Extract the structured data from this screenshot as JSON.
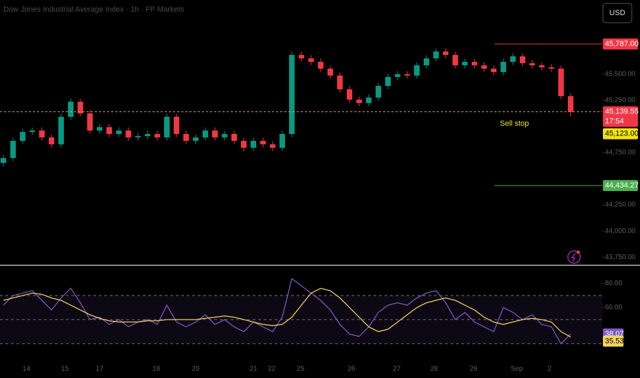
{
  "header": {
    "title": "Dow Jones Industrial Average Index · 1h · FP Markets",
    "currency": "USD"
  },
  "chart_data": [
    {
      "type": "candlestick",
      "open": [
        44650,
        44697,
        44861,
        44946,
        44960,
        44894,
        44828,
        45091,
        45235,
        45124,
        44960,
        44992,
        44927,
        44960,
        44894,
        44907,
        44927,
        44894,
        45091,
        44927,
        44861,
        44894,
        44960,
        44894,
        44927,
        44861,
        44795,
        44861,
        44828,
        44795,
        44927,
        45682,
        45649,
        45616,
        45551,
        45485,
        45354,
        45255,
        45222,
        45275,
        45386,
        45472,
        45498,
        45485,
        45583,
        45649,
        45715,
        45682,
        45583,
        45616,
        45583,
        45551,
        45518,
        45616,
        45669,
        45603,
        45583,
        45564,
        45551,
        45288
      ],
      "high": [
        44727,
        44891,
        44976,
        44990,
        44990,
        44924,
        45121,
        45265,
        45265,
        45154,
        45022,
        45022,
        44990,
        44990,
        44937,
        44957,
        44957,
        45121,
        45121,
        44957,
        44924,
        44990,
        44990,
        44957,
        44957,
        44891,
        44891,
        44891,
        44858,
        44957,
        45712,
        45712,
        45679,
        45646,
        45581,
        45515,
        45384,
        45285,
        45305,
        45416,
        45502,
        45528,
        45528,
        45613,
        45679,
        45745,
        45745,
        45712,
        45646,
        45646,
        45613,
        45581,
        45646,
        45699,
        45699,
        45633,
        45613,
        45594,
        45581,
        45318
      ],
      "low": [
        44620,
        44667,
        44831,
        44916,
        44864,
        44798,
        44798,
        45061,
        45094,
        44930,
        44930,
        44897,
        44897,
        44864,
        44864,
        44877,
        44864,
        44864,
        44897,
        44831,
        44831,
        44864,
        44864,
        44864,
        44831,
        44765,
        44765,
        44798,
        44765,
        44765,
        44897,
        45619,
        45586,
        45521,
        45455,
        45324,
        45225,
        45192,
        45192,
        45245,
        45356,
        45442,
        45455,
        45455,
        45553,
        45619,
        45652,
        45553,
        45553,
        45553,
        45521,
        45488,
        45488,
        45586,
        45573,
        45553,
        45534,
        45521,
        45258,
        45094
      ],
      "close": [
        44697,
        44861,
        44946,
        44960,
        44894,
        44828,
        45091,
        45235,
        45124,
        44960,
        44992,
        44927,
        44960,
        44894,
        44907,
        44927,
        44894,
        45091,
        44927,
        44861,
        44894,
        44960,
        44894,
        44927,
        44861,
        44795,
        44861,
        44828,
        44795,
        44927,
        45682,
        45649,
        45616,
        45551,
        45485,
        45354,
        45255,
        45222,
        45275,
        45386,
        45472,
        45498,
        45485,
        45583,
        45649,
        45715,
        45682,
        45583,
        45616,
        45583,
        45551,
        45518,
        45616,
        45669,
        45603,
        45583,
        45564,
        45551,
        45288,
        45139.55
      ],
      "up_color": "#089981",
      "down_color": "#f23645",
      "ylim": [
        43679,
        46207
      ],
      "yticks": [
        {
          "value": 45500,
          "label": "45,500.00"
        },
        {
          "value": 45250,
          "label": "45,250.00"
        },
        {
          "value": 44750,
          "label": "44,750.00"
        },
        {
          "value": 44250,
          "label": "44,250.00"
        },
        {
          "value": 44000,
          "label": "44,000.00"
        },
        {
          "value": 43750,
          "label": "43,750.00"
        }
      ],
      "xticks": [
        {
          "value": 2.4,
          "label": "14"
        },
        {
          "value": 6.4,
          "label": "15"
        },
        {
          "value": 10,
          "label": "17"
        },
        {
          "value": 15.9,
          "label": "18"
        },
        {
          "value": 20,
          "label": "20"
        },
        {
          "value": 26,
          "label": "21"
        },
        {
          "value": 27.9,
          "label": "22"
        },
        {
          "value": 30.9,
          "label": "25"
        },
        {
          "value": 36.2,
          "label": "26"
        },
        {
          "value": 40.9,
          "label": "27"
        },
        {
          "value": 44.8,
          "label": "28"
        },
        {
          "value": 48.9,
          "label": "29"
        },
        {
          "value": 53.4,
          "label": "Sep"
        },
        {
          "value": 56.8,
          "label": "2"
        }
      ],
      "levels": [
        {
          "value": 45787,
          "label": "45,787.00",
          "color": "#f23645"
        },
        {
          "value": 44434.27,
          "label": "44,434.27",
          "color": "#4caf50"
        }
      ],
      "last_price": {
        "value": 45139.55,
        "label": "45,139.55",
        "countdown": "17:54",
        "color": "#f23645"
      },
      "order": {
        "value": 45123,
        "label": "45,123.00",
        "color": "#f2e30c",
        "annotation": "Sell stop"
      }
    },
    {
      "type": "line",
      "series": [
        {
          "color": "#7e57c2",
          "values": [
            62,
            70,
            72,
            74,
            66,
            58,
            68,
            76,
            64,
            50,
            52,
            46,
            50,
            44,
            48,
            50,
            46,
            62,
            48,
            44,
            48,
            54,
            46,
            50,
            44,
            40,
            48,
            44,
            40,
            52,
            84,
            78,
            72,
            66,
            58,
            46,
            38,
            36,
            44,
            56,
            62,
            64,
            62,
            68,
            72,
            74,
            64,
            50,
            56,
            48,
            44,
            40,
            60,
            56,
            50,
            54,
            46,
            44,
            30,
            38.07
          ]
        },
        {
          "color": "#f2d35c",
          "values": [
            66,
            68,
            70,
            72,
            71,
            68,
            66,
            62,
            58,
            54,
            51,
            49,
            48,
            48,
            48,
            49,
            49,
            50,
            50,
            50,
            50,
            51,
            52,
            53,
            52,
            50,
            48,
            46,
            45,
            46,
            52,
            62,
            72,
            76,
            74,
            68,
            60,
            52,
            44,
            40,
            42,
            48,
            54,
            60,
            64,
            66,
            68,
            66,
            62,
            58,
            52,
            48,
            46,
            48,
            50,
            51,
            50,
            48,
            40,
            35.53
          ]
        }
      ],
      "ylim": [
        18.6,
        94
      ],
      "yticks": [
        {
          "value": 80,
          "label": "80.00"
        },
        {
          "value": 60,
          "label": "60.00"
        }
      ],
      "levels": [
        70,
        50,
        30
      ]
    }
  ]
}
